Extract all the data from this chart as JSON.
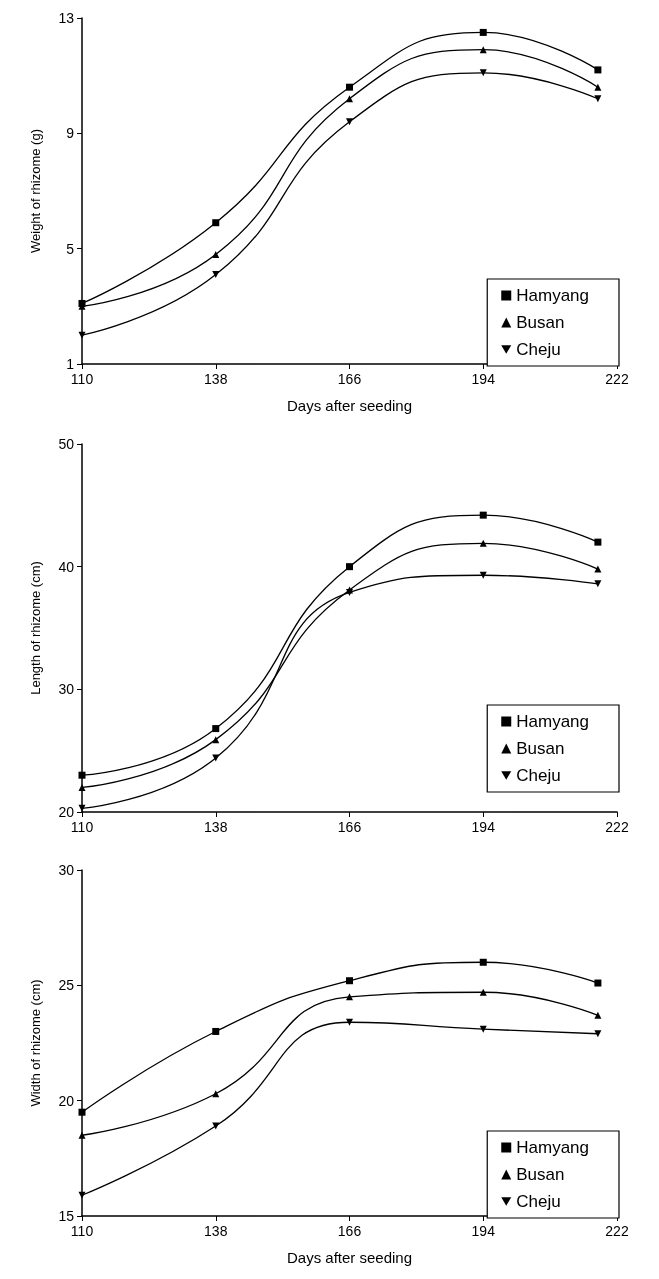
{
  "chart_data": [
    {
      "type": "line",
      "xlabel": "Days after seeding",
      "ylabel": "Weight of rhizome (g)",
      "x": [
        110,
        138,
        166,
        194,
        218
      ],
      "xlim": [
        110,
        222
      ],
      "xticks": [
        110,
        138,
        166,
        194,
        222
      ],
      "ylim": [
        1,
        13
      ],
      "yticks": [
        1,
        5,
        9,
        13
      ],
      "legend": "bottom right",
      "grid": false,
      "line_style": "solid",
      "series": [
        {
          "name": "Hamyang",
          "color": "#000000",
          "marker": "square",
          "values": [
            3.1,
            5.9,
            10.6,
            12.5,
            11.2
          ]
        },
        {
          "name": "Busan",
          "color": "#000000",
          "marker": "triangle",
          "values": [
            3.0,
            4.8,
            10.2,
            11.9,
            10.6
          ]
        },
        {
          "name": "Cheju",
          "color": "#000000",
          "marker": "triangle_down",
          "values": [
            2.0,
            4.1,
            9.4,
            11.1,
            10.2
          ]
        }
      ]
    },
    {
      "type": "line",
      "ylabel": "Length of rhizome (cm)",
      "x": [
        110,
        138,
        166,
        194,
        218
      ],
      "xlim": [
        110,
        222
      ],
      "xticks": [
        110,
        138,
        166,
        194,
        222
      ],
      "ylim": [
        20,
        50
      ],
      "yticks": [
        20,
        30,
        40,
        50
      ],
      "legend": "bottom right",
      "grid": false,
      "line_style": "solid",
      "series": [
        {
          "name": "Hamyang",
          "color": "#000000",
          "marker": "square",
          "values": [
            23.0,
            26.8,
            40.0,
            44.2,
            42.0
          ]
        },
        {
          "name": "Busan",
          "color": "#000000",
          "marker": "triangle",
          "values": [
            22.0,
            25.9,
            38.1,
            41.9,
            39.8
          ]
        },
        {
          "name": "Cheju",
          "color": "#000000",
          "marker": "triangle_down",
          "values": [
            20.3,
            24.4,
            37.9,
            39.3,
            38.6
          ]
        }
      ]
    },
    {
      "type": "line",
      "xlabel": "Days after seeding",
      "ylabel": "Width of rhizome (cm)",
      "x": [
        110,
        138,
        166,
        194,
        218
      ],
      "xlim": [
        110,
        222
      ],
      "xticks": [
        110,
        138,
        166,
        194,
        222
      ],
      "ylim": [
        15,
        30
      ],
      "yticks": [
        15,
        20,
        25,
        30
      ],
      "legend": "bottom right",
      "grid": false,
      "line_style": "solid",
      "series": [
        {
          "name": "Hamyang",
          "color": "#000000",
          "marker": "square",
          "values": [
            19.5,
            23.0,
            25.2,
            26.0,
            25.1
          ]
        },
        {
          "name": "Busan",
          "color": "#000000",
          "marker": "triangle",
          "values": [
            18.5,
            20.3,
            24.5,
            24.7,
            23.7
          ]
        },
        {
          "name": "Cheju",
          "color": "#000000",
          "marker": "triangle_down",
          "values": [
            15.9,
            18.9,
            23.4,
            23.1,
            22.9
          ]
        }
      ]
    }
  ]
}
